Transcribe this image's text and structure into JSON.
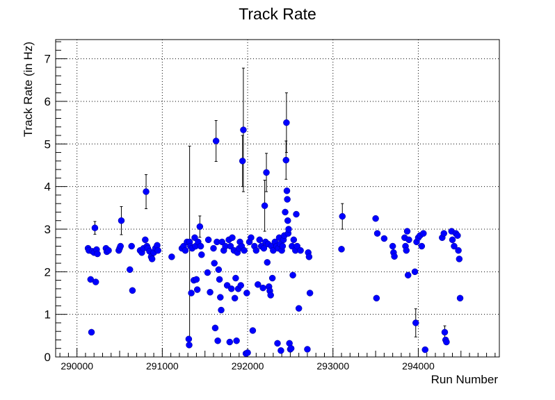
{
  "chart_data": {
    "type": "scatter",
    "title": "Track Rate",
    "xlabel": "Run Number",
    "ylabel": "Track Rate (in Hz)",
    "xlim": [
      289750,
      294950
    ],
    "ylim": [
      0,
      7.45
    ],
    "x_ticks": [
      290000,
      291000,
      292000,
      293000,
      294000
    ],
    "y_ticks": [
      0,
      1,
      2,
      3,
      4,
      5,
      6,
      7
    ],
    "grid": "dotted",
    "marker_color": "#0000ff",
    "error_bar_color": "#000000",
    "series": [
      {
        "points": [
          {
            "x": 290130,
            "y": 2.55
          },
          {
            "x": 290140,
            "y": 2.5
          },
          {
            "x": 290160,
            "y": 1.82
          },
          {
            "x": 290170,
            "y": 0.58
          },
          {
            "x": 290180,
            "y": 2.48
          },
          {
            "x": 290200,
            "y": 2.45
          },
          {
            "x": 290210,
            "y": 3.03,
            "err": 0.15
          },
          {
            "x": 290220,
            "y": 1.76
          },
          {
            "x": 290230,
            "y": 2.52
          },
          {
            "x": 290240,
            "y": 2.42
          },
          {
            "x": 290340,
            "y": 2.55
          },
          {
            "x": 290350,
            "y": 2.47
          },
          {
            "x": 290370,
            "y": 2.5
          },
          {
            "x": 290490,
            "y": 2.5
          },
          {
            "x": 290500,
            "y": 2.55
          },
          {
            "x": 290510,
            "y": 2.6
          },
          {
            "x": 290520,
            "y": 3.2,
            "err": 0.33
          },
          {
            "x": 290620,
            "y": 2.05
          },
          {
            "x": 290640,
            "y": 2.6
          },
          {
            "x": 290650,
            "y": 1.56
          },
          {
            "x": 290740,
            "y": 2.5
          },
          {
            "x": 290760,
            "y": 2.45
          },
          {
            "x": 290780,
            "y": 2.55
          },
          {
            "x": 290800,
            "y": 2.75
          },
          {
            "x": 290810,
            "y": 3.88,
            "err": 0.4
          },
          {
            "x": 290820,
            "y": 2.6
          },
          {
            "x": 290830,
            "y": 2.55
          },
          {
            "x": 290850,
            "y": 2.48
          },
          {
            "x": 290870,
            "y": 2.35
          },
          {
            "x": 290880,
            "y": 2.3
          },
          {
            "x": 290900,
            "y": 2.45
          },
          {
            "x": 290920,
            "y": 2.55
          },
          {
            "x": 290940,
            "y": 2.62
          },
          {
            "x": 290950,
            "y": 2.5
          },
          {
            "x": 291110,
            "y": 2.35
          },
          {
            "x": 291230,
            "y": 2.55
          },
          {
            "x": 291250,
            "y": 2.6
          },
          {
            "x": 291270,
            "y": 2.5
          },
          {
            "x": 291290,
            "y": 2.7
          },
          {
            "x": 291310,
            "y": 0.42
          },
          {
            "x": 291315,
            "y": 0.28
          },
          {
            "x": 291320,
            "y": 2.7,
            "err": 2.25
          },
          {
            "x": 291330,
            "y": 2.6
          },
          {
            "x": 291340,
            "y": 1.5
          },
          {
            "x": 291350,
            "y": 2.55
          },
          {
            "x": 291370,
            "y": 1.8
          },
          {
            "x": 291380,
            "y": 2.8
          },
          {
            "x": 291390,
            "y": 2.6
          },
          {
            "x": 291400,
            "y": 1.82
          },
          {
            "x": 291410,
            "y": 1.58
          },
          {
            "x": 291420,
            "y": 2.7
          },
          {
            "x": 291440,
            "y": 3.06,
            "err": 0.25
          },
          {
            "x": 291450,
            "y": 2.6
          },
          {
            "x": 291460,
            "y": 2.4
          },
          {
            "x": 291530,
            "y": 1.98
          },
          {
            "x": 291540,
            "y": 2.75
          },
          {
            "x": 291560,
            "y": 1.52
          },
          {
            "x": 291600,
            "y": 2.55
          },
          {
            "x": 291610,
            "y": 2.2
          },
          {
            "x": 291620,
            "y": 0.68
          },
          {
            "x": 291630,
            "y": 5.07,
            "err": 0.48
          },
          {
            "x": 291640,
            "y": 2.7
          },
          {
            "x": 291650,
            "y": 0.38
          },
          {
            "x": 291660,
            "y": 2.05
          },
          {
            "x": 291670,
            "y": 1.82
          },
          {
            "x": 291680,
            "y": 1.4
          },
          {
            "x": 291690,
            "y": 1.1
          },
          {
            "x": 291700,
            "y": 2.7
          },
          {
            "x": 291720,
            "y": 2.5
          },
          {
            "x": 291740,
            "y": 2.6
          },
          {
            "x": 291760,
            "y": 1.68
          },
          {
            "x": 291780,
            "y": 2.75
          },
          {
            "x": 291790,
            "y": 0.35
          },
          {
            "x": 291800,
            "y": 2.6
          },
          {
            "x": 291810,
            "y": 1.6
          },
          {
            "x": 291820,
            "y": 2.8
          },
          {
            "x": 291840,
            "y": 2.5
          },
          {
            "x": 291850,
            "y": 1.38
          },
          {
            "x": 291860,
            "y": 1.85
          },
          {
            "x": 291870,
            "y": 0.38
          },
          {
            "x": 291880,
            "y": 2.45
          },
          {
            "x": 291890,
            "y": 1.6
          },
          {
            "x": 291900,
            "y": 2.55
          },
          {
            "x": 291910,
            "y": 2.7
          },
          {
            "x": 291920,
            "y": 1.68
          },
          {
            "x": 291930,
            "y": 2.6
          },
          {
            "x": 291940,
            "y": 4.6,
            "err": 0.6
          },
          {
            "x": 291950,
            "y": 5.33,
            "err": 1.45
          },
          {
            "x": 291960,
            "y": 2.5
          },
          {
            "x": 291980,
            "y": 0.08
          },
          {
            "x": 291990,
            "y": 1.5
          },
          {
            "x": 292000,
            "y": 0.1
          },
          {
            "x": 292020,
            "y": 2.7
          },
          {
            "x": 292040,
            "y": 2.8
          },
          {
            "x": 292060,
            "y": 0.62
          },
          {
            "x": 292080,
            "y": 2.6
          },
          {
            "x": 292100,
            "y": 2.5
          },
          {
            "x": 292120,
            "y": 1.7
          },
          {
            "x": 292140,
            "y": 2.75
          },
          {
            "x": 292160,
            "y": 2.6
          },
          {
            "x": 292180,
            "y": 1.62
          },
          {
            "x": 292190,
            "y": 2.55
          },
          {
            "x": 292200,
            "y": 3.55,
            "err": 0.6
          },
          {
            "x": 292210,
            "y": 2.7
          },
          {
            "x": 292220,
            "y": 4.33,
            "err": 0.45
          },
          {
            "x": 292230,
            "y": 2.22
          },
          {
            "x": 292240,
            "y": 2.65
          },
          {
            "x": 292250,
            "y": 1.65
          },
          {
            "x": 292260,
            "y": 1.55
          },
          {
            "x": 292270,
            "y": 1.45
          },
          {
            "x": 292280,
            "y": 2.6
          },
          {
            "x": 292290,
            "y": 1.85
          },
          {
            "x": 292300,
            "y": 2.5
          },
          {
            "x": 292320,
            "y": 2.7
          },
          {
            "x": 292340,
            "y": 2.6
          },
          {
            "x": 292350,
            "y": 0.32
          },
          {
            "x": 292360,
            "y": 2.55
          },
          {
            "x": 292370,
            "y": 2.8
          },
          {
            "x": 292380,
            "y": 2.65
          },
          {
            "x": 292390,
            "y": 0.15
          },
          {
            "x": 292400,
            "y": 2.5
          },
          {
            "x": 292410,
            "y": 2.6
          },
          {
            "x": 292420,
            "y": 2.75
          },
          {
            "x": 292430,
            "y": 2.85
          },
          {
            "x": 292440,
            "y": 3.4
          },
          {
            "x": 292450,
            "y": 4.62,
            "err": 0.45
          },
          {
            "x": 292455,
            "y": 5.5,
            "err": 0.7
          },
          {
            "x": 292460,
            "y": 3.9
          },
          {
            "x": 292465,
            "y": 3.7
          },
          {
            "x": 292470,
            "y": 3.2
          },
          {
            "x": 292475,
            "y": 2.9
          },
          {
            "x": 292480,
            "y": 3.0
          },
          {
            "x": 292490,
            "y": 0.32
          },
          {
            "x": 292500,
            "y": 0.18
          },
          {
            "x": 292510,
            "y": 0.2
          },
          {
            "x": 292520,
            "y": 2.6
          },
          {
            "x": 292530,
            "y": 1.92
          },
          {
            "x": 292540,
            "y": 2.75
          },
          {
            "x": 292560,
            "y": 2.5
          },
          {
            "x": 292570,
            "y": 3.35
          },
          {
            "x": 292580,
            "y": 2.6
          },
          {
            "x": 292600,
            "y": 1.14
          },
          {
            "x": 292620,
            "y": 2.5
          },
          {
            "x": 292700,
            "y": 0.18
          },
          {
            "x": 292710,
            "y": 2.45
          },
          {
            "x": 292720,
            "y": 2.35
          },
          {
            "x": 292730,
            "y": 1.5
          },
          {
            "x": 293100,
            "y": 2.53
          },
          {
            "x": 293110,
            "y": 3.3,
            "err": 0.3
          },
          {
            "x": 293500,
            "y": 3.25
          },
          {
            "x": 293510,
            "y": 1.38
          },
          {
            "x": 293520,
            "y": 2.9
          },
          {
            "x": 293600,
            "y": 2.78
          },
          {
            "x": 293700,
            "y": 2.6
          },
          {
            "x": 293710,
            "y": 2.45
          },
          {
            "x": 293720,
            "y": 2.36
          },
          {
            "x": 293840,
            "y": 2.8
          },
          {
            "x": 293850,
            "y": 2.6
          },
          {
            "x": 293860,
            "y": 2.5
          },
          {
            "x": 293870,
            "y": 2.95
          },
          {
            "x": 293880,
            "y": 1.92
          },
          {
            "x": 293890,
            "y": 2.75
          },
          {
            "x": 293960,
            "y": 2.0
          },
          {
            "x": 293970,
            "y": 0.8,
            "err": 0.33
          },
          {
            "x": 293980,
            "y": 2.7
          },
          {
            "x": 294000,
            "y": 2.8
          },
          {
            "x": 294020,
            "y": 2.85
          },
          {
            "x": 294040,
            "y": 2.6
          },
          {
            "x": 294060,
            "y": 2.9
          },
          {
            "x": 294080,
            "y": 0.17
          },
          {
            "x": 294280,
            "y": 2.8
          },
          {
            "x": 294300,
            "y": 2.9
          },
          {
            "x": 294310,
            "y": 0.58,
            "err": 0.15
          },
          {
            "x": 294320,
            "y": 0.4
          },
          {
            "x": 294330,
            "y": 0.35
          },
          {
            "x": 294390,
            "y": 2.95
          },
          {
            "x": 294400,
            "y": 2.75
          },
          {
            "x": 294420,
            "y": 2.6
          },
          {
            "x": 294440,
            "y": 2.9
          },
          {
            "x": 294460,
            "y": 2.85
          },
          {
            "x": 294470,
            "y": 2.5
          },
          {
            "x": 294480,
            "y": 2.3
          },
          {
            "x": 294490,
            "y": 1.38
          }
        ]
      }
    ]
  }
}
